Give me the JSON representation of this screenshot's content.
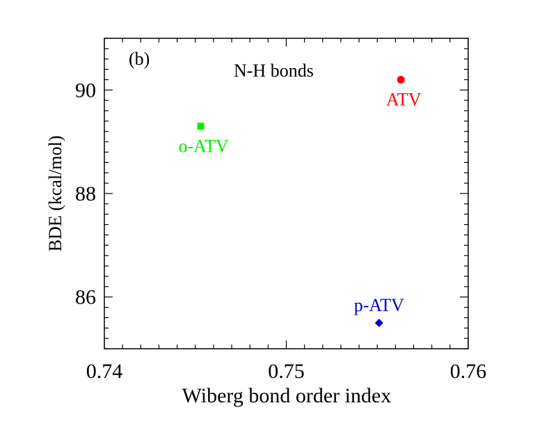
{
  "chart_data": {
    "type": "scatter",
    "panel_label": "(b)",
    "title": "N-H bonds",
    "xlabel": "Wiberg bond order index",
    "ylabel": "BDE (kcal/mol)",
    "xlim": [
      0.74,
      0.76
    ],
    "ylim": [
      85.0,
      91.0
    ],
    "x_ticks": [
      0.74,
      0.75,
      0.76
    ],
    "x_tick_labels": [
      "0.74",
      "0.75",
      "0.76"
    ],
    "y_ticks": [
      86,
      88,
      90
    ],
    "y_tick_labels": [
      "86",
      "88",
      "90"
    ],
    "grid": false,
    "points": [
      {
        "label": "ATV",
        "x": 0.7563,
        "y": 90.2,
        "marker": "circle",
        "color": "#ff0000"
      },
      {
        "label": "o-ATV",
        "x": 0.7453,
        "y": 89.3,
        "marker": "square",
        "color": "#00ee00"
      },
      {
        "label": "p-ATV",
        "x": 0.7551,
        "y": 85.5,
        "marker": "diamond",
        "color": "#0000cc"
      }
    ]
  }
}
